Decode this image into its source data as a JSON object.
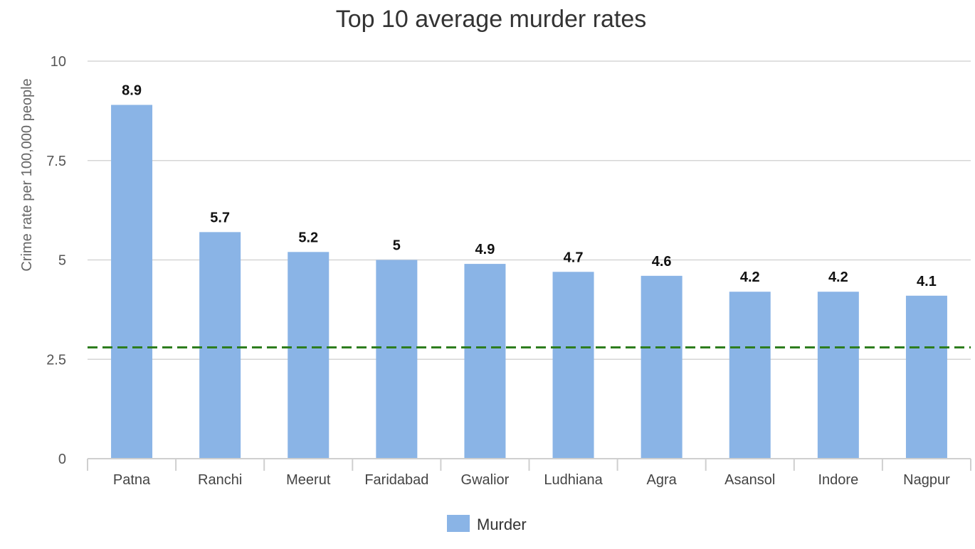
{
  "chart_data": {
    "type": "bar",
    "title": "Top 10 average murder rates",
    "xlabel": "",
    "ylabel": "Crime rate per 100,000 people",
    "ylim": [
      0,
      10
    ],
    "yticks": [
      {
        "value": 0,
        "label": "0"
      },
      {
        "value": 2.5,
        "label": "2.5"
      },
      {
        "value": 5,
        "label": "5"
      },
      {
        "value": 7.5,
        "label": "7.5"
      },
      {
        "value": 10,
        "label": "10"
      }
    ],
    "categories": [
      "Patna",
      "Ranchi",
      "Meerut",
      "Faridabad",
      "Gwalior",
      "Ludhiana",
      "Agra",
      "Asansol",
      "Indore",
      "Nagpur"
    ],
    "series": [
      {
        "name": "Murder",
        "color": "#8ab4e6",
        "values": [
          8.9,
          5.7,
          5.2,
          5,
          4.9,
          4.7,
          4.6,
          4.2,
          4.2,
          4.1
        ],
        "labels": [
          "8.9",
          "5.7",
          "5.2",
          "5",
          "4.9",
          "4.7",
          "4.6",
          "4.2",
          "4.2",
          "4.1"
        ]
      }
    ],
    "reference_line": {
      "value": 2.8,
      "color": "#2e7d1e",
      "style": "dashed"
    },
    "grid": true,
    "legend": "bottom-center"
  }
}
